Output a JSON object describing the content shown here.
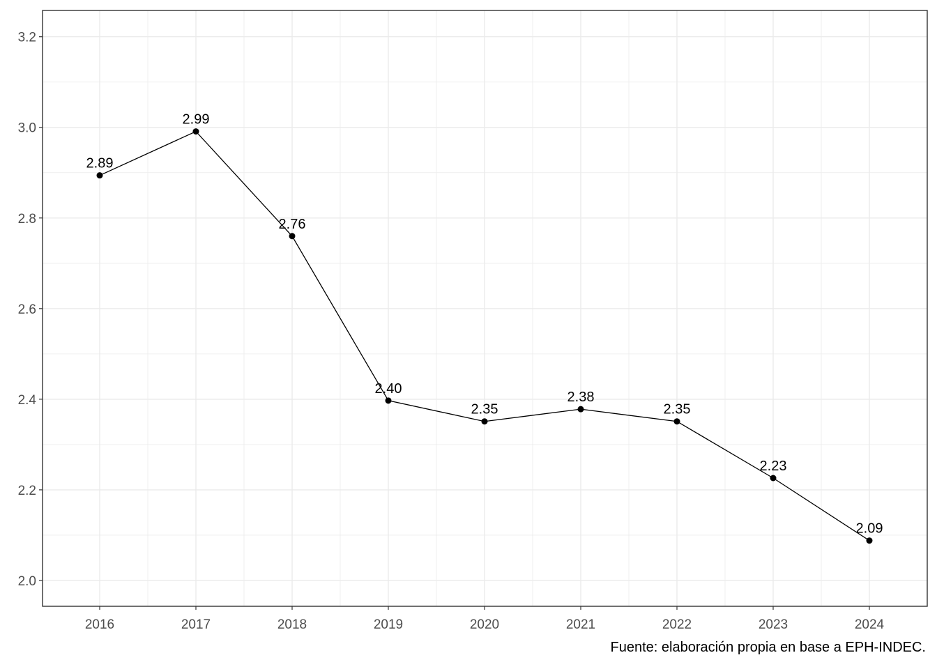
{
  "chart_data": {
    "type": "line",
    "x": [
      "2016",
      "2017",
      "2018",
      "2019",
      "2020",
      "2021",
      "2022",
      "2023",
      "2024"
    ],
    "series": [
      {
        "values": [
          2.894,
          2.991,
          2.76,
          2.397,
          2.351,
          2.378,
          2.351,
          2.226,
          2.088
        ],
        "labels": [
          "2.89",
          "2.99",
          "2.76",
          "2.40",
          "2.35",
          "2.38",
          "2.35",
          "2.23",
          "2.09"
        ]
      }
    ],
    "title": "",
    "xlabel": "",
    "ylabel": "",
    "ylim": [
      1.943,
      3.258
    ],
    "yticks": [
      "2.0",
      "2.2",
      "2.4",
      "2.6",
      "2.8",
      "3.0",
      "3.2"
    ],
    "grid": true,
    "legend": "none",
    "colors": {
      "line": "#000000",
      "point": "#000000",
      "grid": "#ebebeb",
      "panel_border": "#333333",
      "tick_text": "#4d4d4d"
    }
  },
  "caption": "Fuente: elaboración propia en base a EPH-INDEC."
}
